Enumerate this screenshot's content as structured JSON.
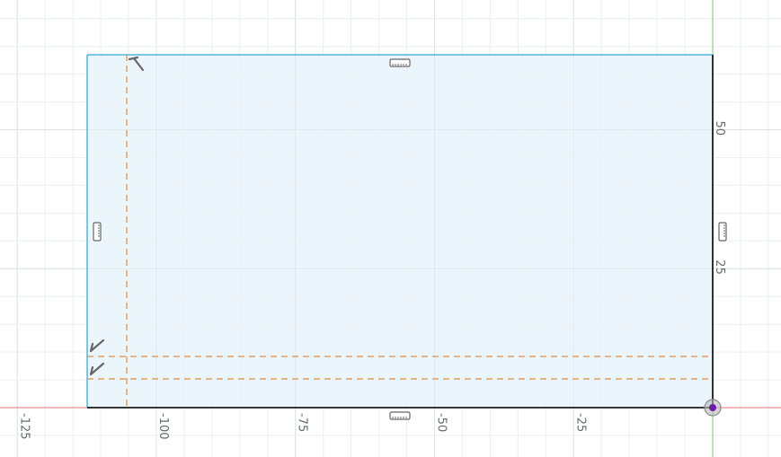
{
  "viewport": {
    "x_axis_labels": [
      "-125",
      "-100",
      "-75",
      "-50",
      "-25"
    ],
    "y_axis_labels": [
      "50",
      "25"
    ]
  },
  "colors": {
    "sketch_fill": "#e8f4fb",
    "sketch_edge": "#4fb6e0",
    "fixed_edge": "#1a1a1a",
    "construction_line": "#e58a3c",
    "x_axis": "#e07070",
    "y_axis": "#6ccf6c",
    "origin": "#6a1fa8",
    "constraint_glyph": "#666666"
  },
  "sketch": {
    "name": "sketch-profile-rectangle",
    "constraints": [
      "horizontal-constraint-top",
      "horizontal-constraint-bottom",
      "vertical-constraint-left",
      "vertical-constraint-right",
      "perpendicular-constraint-top",
      "perpendicular-constraint-mid",
      "perpendicular-constraint-low"
    ]
  }
}
